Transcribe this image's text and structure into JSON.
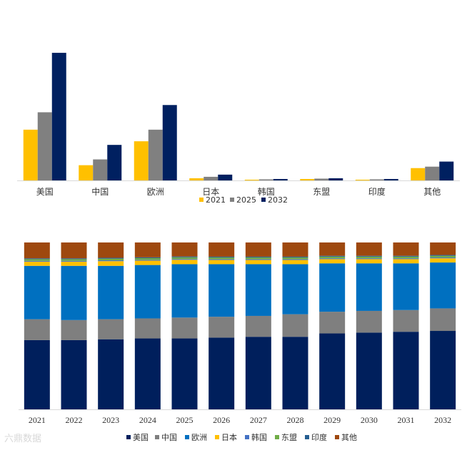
{
  "colors": {
    "y2021": "#FFC000",
    "y2025": "#808080",
    "y2032": "#002060",
    "us": "#001F5C",
    "cn": "#7F7F7F",
    "eu": "#0070C0",
    "jp": "#FFC000",
    "kr": "#4472C4",
    "asean": "#70AD47",
    "in": "#255E91",
    "other": "#9E480E",
    "axis": "#D9D9D9"
  },
  "watermark": "六鼎数据",
  "chart_data": [
    {
      "type": "bar",
      "title": "",
      "categories": [
        "美国",
        "中国",
        "欧洲",
        "日本",
        "韩国",
        "东盟",
        "印度",
        "其他"
      ],
      "series": [
        {
          "name": "2021",
          "color_key": "y2021",
          "values": [
            70,
            21,
            54,
            3,
            1,
            2,
            1,
            17
          ]
        },
        {
          "name": "2025",
          "color_key": "y2025",
          "values": [
            94,
            29,
            70,
            5,
            1.5,
            2.5,
            1.5,
            19
          ]
        },
        {
          "name": "2032",
          "color_key": "y2032",
          "values": [
            176,
            49,
            104,
            8,
            2,
            3,
            2,
            26
          ]
        }
      ],
      "ylim": [
        0,
        180
      ],
      "legend_position": "bottom"
    },
    {
      "type": "bar",
      "stacked": "percent",
      "title": "",
      "categories": [
        "2021",
        "2022",
        "2023",
        "2024",
        "2025",
        "2026",
        "2027",
        "2028",
        "2029",
        "2030",
        "2031",
        "2032"
      ],
      "series": [
        {
          "name": "美国",
          "color_key": "us",
          "values": [
            41.5,
            41.5,
            42,
            42.5,
            42.5,
            43,
            43.5,
            43.5,
            45.5,
            46,
            46.5,
            47
          ]
        },
        {
          "name": "中国",
          "color_key": "cn",
          "values": [
            12.5,
            12,
            12,
            12,
            12.5,
            12.5,
            12.5,
            13.5,
            13,
            13,
            13,
            13.5
          ]
        },
        {
          "name": "欧洲",
          "color_key": "eu",
          "values": [
            32,
            32.5,
            32,
            32,
            32,
            31.5,
            31,
            30,
            29,
            28.5,
            28,
            27.5
          ]
        },
        {
          "name": "日本",
          "color_key": "jp",
          "values": [
            2.5,
            2.5,
            2.8,
            2.6,
            2.6,
            2.5,
            2.5,
            2.5,
            2.5,
            2.5,
            2.5,
            2.5
          ]
        },
        {
          "name": "韩国",
          "color_key": "kr",
          "values": [
            0.5,
            0.5,
            0.5,
            0.5,
            0.5,
            0.5,
            0.5,
            0.5,
            0.5,
            0.5,
            0.5,
            0.5
          ]
        },
        {
          "name": "东盟",
          "color_key": "asean",
          "values": [
            1,
            1,
            1,
            1,
            1,
            1,
            1,
            1,
            1,
            1,
            1,
            1
          ]
        },
        {
          "name": "印度",
          "color_key": "in",
          "values": [
            0.5,
            0.5,
            0.5,
            0.5,
            0.5,
            0.5,
            0.5,
            0.5,
            0.5,
            0.5,
            0.5,
            0.5
          ]
        },
        {
          "name": "其他",
          "color_key": "other",
          "values": [
            9.5,
            9.5,
            9.2,
            8.9,
            8.4,
            8.5,
            8.5,
            8.5,
            8,
            8,
            8,
            7.5
          ]
        }
      ],
      "ylim": [
        0,
        100
      ],
      "legend_position": "bottom"
    }
  ]
}
